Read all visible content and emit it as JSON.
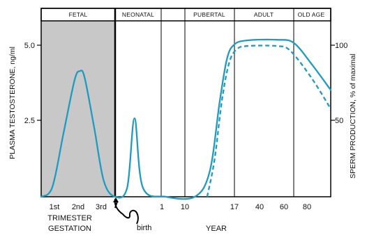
{
  "chart_data": {
    "type": "line",
    "phases": [
      "FETAL",
      "NEONATAL",
      "PUBERTAL",
      "ADULT",
      "OLD AGE"
    ],
    "left_axis": {
      "label": "PLASMA TESTOSTERONE, ng/ml",
      "ticks": [
        {
          "value": 2.5,
          "label": "2.5"
        },
        {
          "value": 5.0,
          "label": "5.0"
        }
      ],
      "range": [
        0,
        6.0
      ]
    },
    "right_axis": {
      "label": "SPERM PRODUCTION, % of maximal",
      "ticks": [
        {
          "value": 50,
          "label": "50"
        },
        {
          "value": 100,
          "label": "100"
        }
      ],
      "range": [
        0,
        120
      ]
    },
    "x_axis": {
      "gestation_ticks": [
        "1st",
        "2nd",
        "3rd"
      ],
      "gestation_label_1": "TRIMESTER",
      "gestation_label_2": "GESTATION",
      "year_ticks": [
        "1",
        "10",
        "17",
        "40",
        "60",
        "80"
      ],
      "year_label": "YEAR",
      "birth_label": "birth"
    },
    "series": [
      {
        "id": "testosterone",
        "style": "solid",
        "color": "#1e9bc0",
        "points": [
          {
            "x": 0,
            "y": 0
          },
          {
            "x": 0.3,
            "y": 0.3
          },
          {
            "x": 0.6,
            "y": 2.0
          },
          {
            "x": 0.9,
            "y": 3.7
          },
          {
            "x": 1.05,
            "y": 4.0
          },
          {
            "x": 1.2,
            "y": 3.8
          },
          {
            "x": 1.5,
            "y": 2.2
          },
          {
            "x": 1.8,
            "y": 0.5
          },
          {
            "x": 2.05,
            "y": 0.0
          },
          {
            "x": 2.3,
            "y": 0.3
          },
          {
            "x": 2.45,
            "y": 2.5
          },
          {
            "x": 2.62,
            "y": 0.3
          },
          {
            "x": 3.2,
            "y": 0.0
          },
          {
            "x": 4.4,
            "y": 0.0
          },
          {
            "x": 5.0,
            "y": 0.8
          },
          {
            "x": 5.4,
            "y": 3.0
          },
          {
            "x": 5.7,
            "y": 4.4
          },
          {
            "x": 6.0,
            "y": 4.85
          },
          {
            "x": 6.5,
            "y": 4.98
          },
          {
            "x": 7.5,
            "y": 5.0
          },
          {
            "x": 8.0,
            "y": 4.9
          },
          {
            "x": 8.5,
            "y": 4.2
          },
          {
            "x": 9.0,
            "y": 3.4
          }
        ]
      },
      {
        "id": "sperm_production",
        "style": "dashed",
        "color": "#1e9bc0",
        "points": [
          {
            "x": 4.9,
            "y": 0
          },
          {
            "x": 5.2,
            "y": 24
          },
          {
            "x": 5.5,
            "y": 62
          },
          {
            "x": 5.8,
            "y": 86
          },
          {
            "x": 6.1,
            "y": 94
          },
          {
            "x": 6.5,
            "y": 96
          },
          {
            "x": 7.5,
            "y": 96
          },
          {
            "x": 7.9,
            "y": 93
          },
          {
            "x": 8.5,
            "y": 75
          },
          {
            "x": 9.0,
            "y": 56
          }
        ]
      }
    ]
  }
}
